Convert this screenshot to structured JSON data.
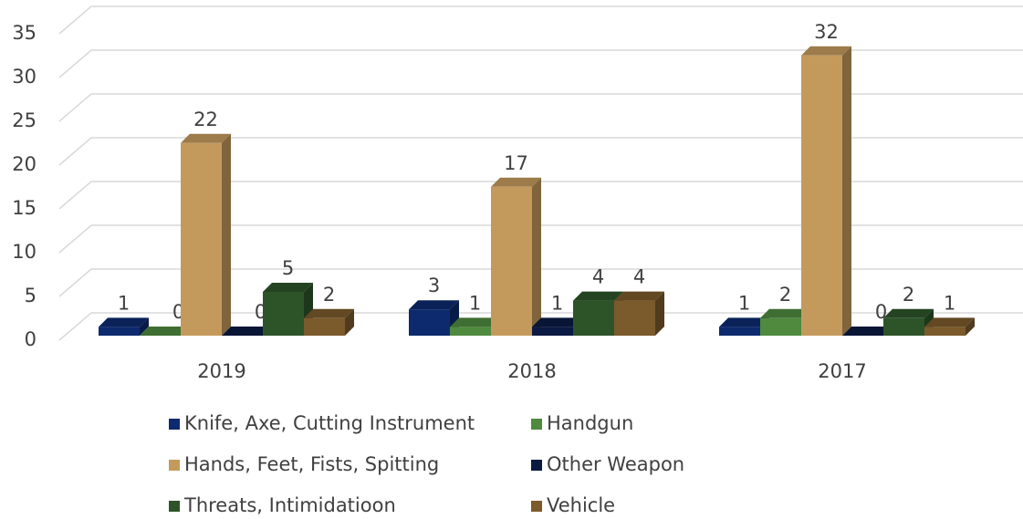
{
  "chart_data": {
    "type": "bar3d",
    "categories": [
      "2019",
      "2018",
      "2017"
    ],
    "series": [
      {
        "name": "Knife, Axe, Cutting Instrument",
        "color": "#0d2a6e",
        "values": [
          1,
          3,
          1
        ]
      },
      {
        "name": "Handgun",
        "color": "#4f8a3f",
        "values": [
          0,
          1,
          2
        ]
      },
      {
        "name": "Hands, Feet, Fists, Spitting",
        "color": "#c49a5c",
        "values": [
          22,
          17,
          32
        ]
      },
      {
        "name": "Other Weapon",
        "color": "#0b1a42",
        "values": [
          0,
          1,
          0
        ]
      },
      {
        "name": "Threats, Intimidatioon",
        "color": "#2d5429",
        "values": [
          5,
          4,
          2
        ]
      },
      {
        "name": "Vehicle",
        "color": "#7b5a2c",
        "values": [
          2,
          4,
          1
        ]
      }
    ],
    "ylim": [
      0,
      35
    ],
    "yticks": [
      0,
      5,
      10,
      15,
      20,
      25,
      30,
      35
    ],
    "grid": true,
    "legend": "bottom"
  }
}
